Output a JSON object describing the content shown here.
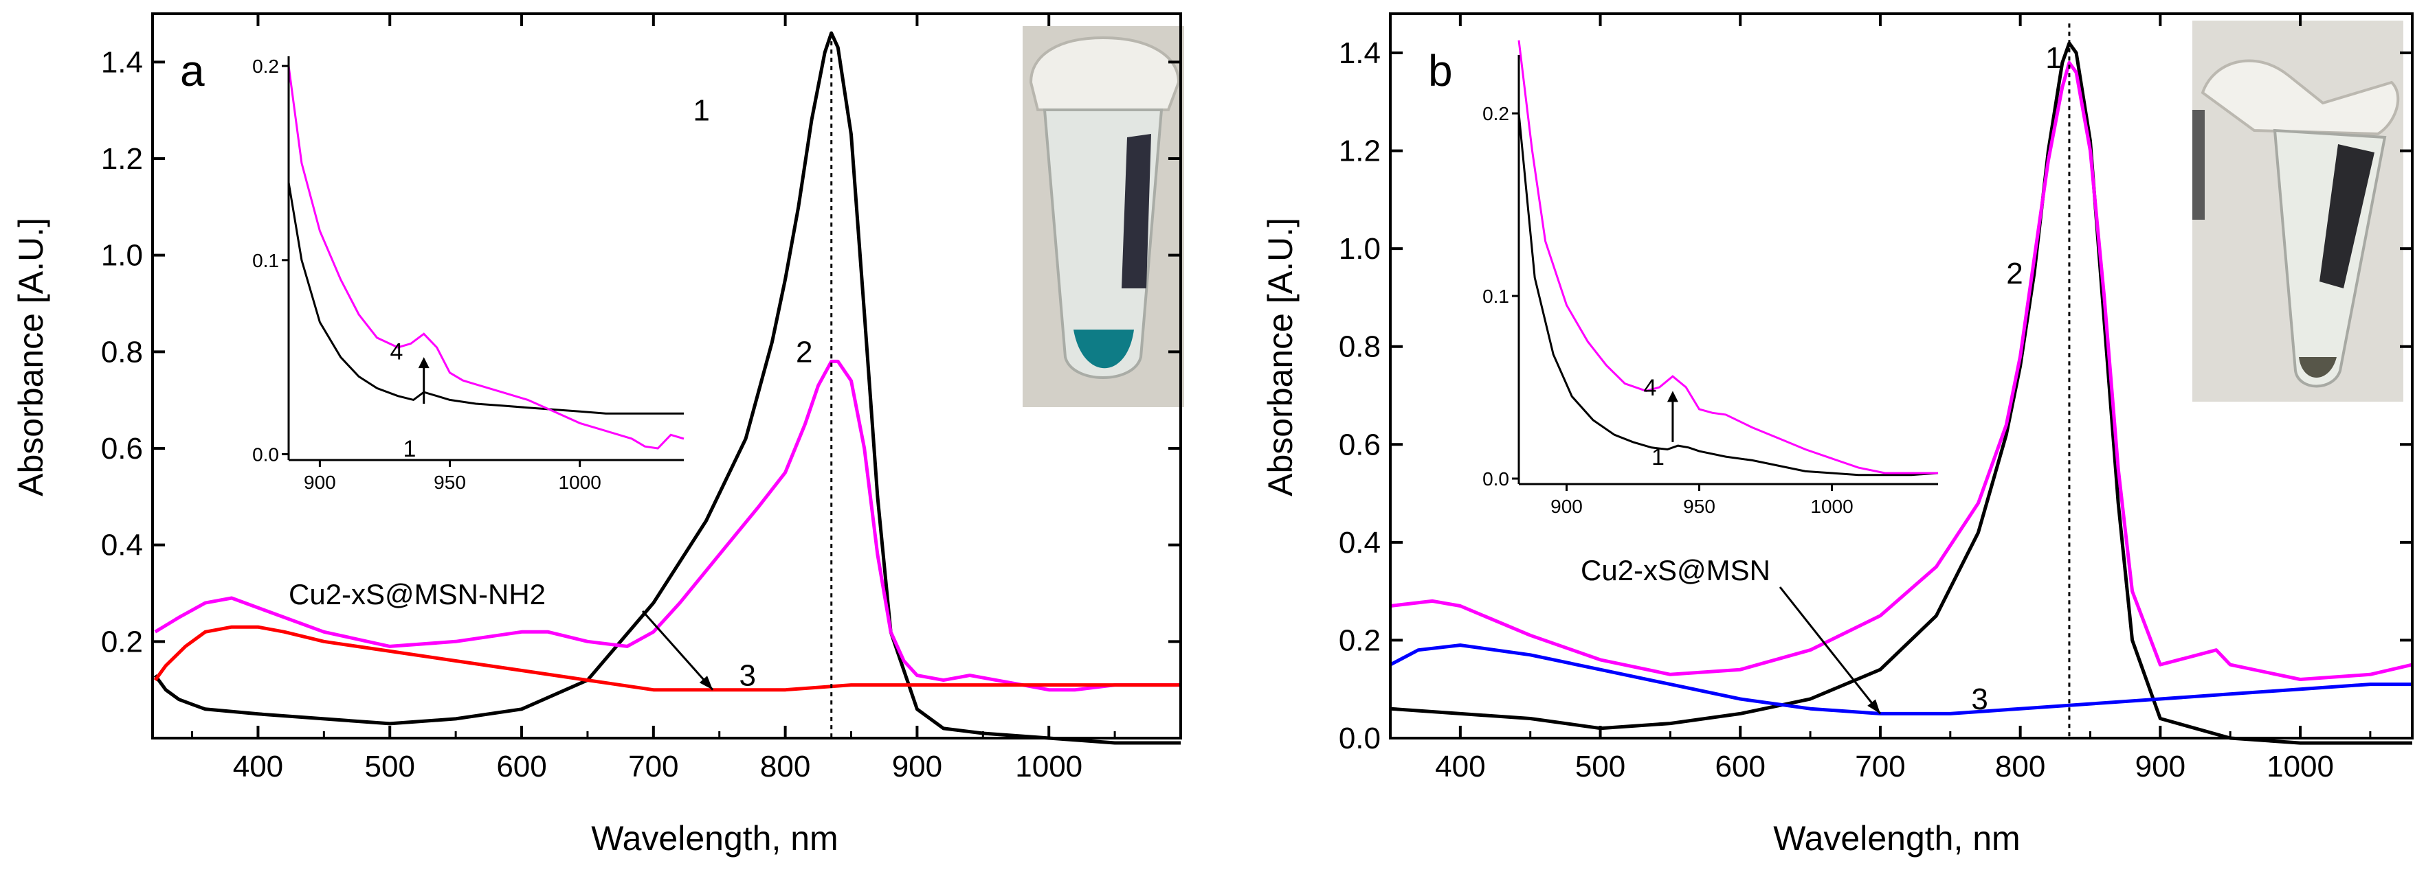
{
  "chart_data": [
    {
      "type": "line",
      "panel_label": "a",
      "xlabel": "Wavelength, nm",
      "ylabel": "Absorbance [A.U.]",
      "xlim": [
        320,
        1100
      ],
      "ylim": [
        0,
        1.5
      ],
      "xticks": [
        400,
        500,
        600,
        700,
        800,
        900,
        1000
      ],
      "yticks": [
        0.2,
        0.4,
        0.6,
        0.8,
        1.0,
        1.2,
        1.4
      ],
      "ytick_labels": [
        "0.2",
        "0.4",
        "0.6",
        "0.8",
        "1.0",
        "1.2",
        "1.4"
      ],
      "peak_marker_x": 835,
      "annotation": {
        "text": "Cu2-xS@MSN-NH2",
        "target": [
          745,
          0.1
        ]
      },
      "series": [
        {
          "name": "1",
          "color": "#000000",
          "x": [
            322,
            330,
            340,
            350,
            360,
            380,
            400,
            450,
            500,
            550,
            600,
            650,
            700,
            740,
            770,
            790,
            800,
            810,
            820,
            830,
            835,
            840,
            850,
            860,
            870,
            880,
            900,
            920,
            950,
            1000,
            1050,
            1100
          ],
          "y": [
            0.13,
            0.1,
            0.08,
            0.07,
            0.06,
            0.055,
            0.05,
            0.04,
            0.03,
            0.04,
            0.06,
            0.12,
            0.28,
            0.45,
            0.62,
            0.82,
            0.95,
            1.1,
            1.28,
            1.42,
            1.46,
            1.43,
            1.25,
            0.88,
            0.5,
            0.22,
            0.06,
            0.02,
            0.01,
            0.0,
            -0.01,
            -0.01
          ],
          "label_pos": [
            730,
            1.3
          ]
        },
        {
          "name": "2",
          "color": "#ff00ff",
          "x": [
            322,
            340,
            360,
            380,
            400,
            450,
            500,
            550,
            600,
            620,
            650,
            680,
            700,
            720,
            750,
            780,
            800,
            815,
            825,
            835,
            840,
            850,
            860,
            870,
            880,
            890,
            900,
            920,
            940,
            960,
            980,
            1000,
            1020,
            1050,
            1100
          ],
          "y": [
            0.22,
            0.25,
            0.28,
            0.29,
            0.27,
            0.22,
            0.19,
            0.2,
            0.22,
            0.22,
            0.2,
            0.19,
            0.22,
            0.28,
            0.38,
            0.48,
            0.55,
            0.65,
            0.73,
            0.78,
            0.78,
            0.74,
            0.6,
            0.38,
            0.22,
            0.16,
            0.13,
            0.12,
            0.13,
            0.12,
            0.11,
            0.1,
            0.1,
            0.11,
            0.11
          ],
          "label_pos": [
            808,
            0.8
          ]
        },
        {
          "name": "3",
          "color": "#ff0000",
          "x": [
            322,
            330,
            345,
            360,
            380,
            400,
            420,
            450,
            500,
            550,
            600,
            650,
            700,
            750,
            800,
            850,
            900,
            950,
            1000,
            1050,
            1100
          ],
          "y": [
            0.12,
            0.15,
            0.19,
            0.22,
            0.23,
            0.23,
            0.22,
            0.2,
            0.18,
            0.16,
            0.14,
            0.12,
            0.1,
            0.1,
            0.1,
            0.11,
            0.11,
            0.11,
            0.11,
            0.11,
            0.11
          ],
          "label_pos": [
            765,
            0.13
          ]
        }
      ],
      "inset": {
        "xlim": [
          888,
          1040
        ],
        "ylim": [
          -0.003,
          0.205
        ],
        "xticks": [
          900,
          950,
          1000
        ],
        "yticks": [
          0.0,
          0.1,
          0.2
        ],
        "ytick_labels": [
          "0.0",
          "0.1",
          "0.2"
        ],
        "arrow": {
          "x": 940,
          "from": 0.026,
          "to": 0.05
        },
        "series": [
          {
            "name": "1",
            "color": "#000000",
            "x": [
              888,
              893,
              900,
              908,
              915,
              922,
              930,
              936,
              940,
              945,
              950,
              960,
              970,
              980,
              990,
              1000,
              1010,
              1020,
              1030,
              1040
            ],
            "y": [
              0.14,
              0.1,
              0.068,
              0.05,
              0.04,
              0.034,
              0.03,
              0.028,
              0.032,
              0.03,
              0.028,
              0.026,
              0.025,
              0.024,
              0.023,
              0.022,
              0.021,
              0.021,
              0.021,
              0.021
            ],
            "label_pos": [
              932,
              0.003
            ]
          },
          {
            "name": "4",
            "color": "#ff00ff",
            "x": [
              888,
              893,
              900,
              908,
              915,
              922,
              930,
              935,
              940,
              945,
              950,
              955,
              960,
              970,
              980,
              990,
              1000,
              1010,
              1020,
              1025,
              1030,
              1035,
              1040
            ],
            "y": [
              0.2,
              0.15,
              0.115,
              0.09,
              0.072,
              0.06,
              0.055,
              0.057,
              0.062,
              0.055,
              0.042,
              0.038,
              0.036,
              0.032,
              0.028,
              0.022,
              0.016,
              0.012,
              0.008,
              0.004,
              0.003,
              0.01,
              0.008
            ],
            "label_pos": [
              927,
              0.053
            ]
          }
        ]
      }
    },
    {
      "type": "line",
      "panel_label": "b",
      "xlabel": "Wavelength, nm",
      "ylabel": "Absorbance [A.U.]",
      "xlim": [
        350,
        1080
      ],
      "ylim": [
        0,
        1.48
      ],
      "xticks": [
        400,
        500,
        600,
        700,
        800,
        900,
        1000
      ],
      "yticks": [
        0.0,
        0.2,
        0.4,
        0.6,
        0.8,
        1.0,
        1.2,
        1.4
      ],
      "ytick_labels": [
        "0.0",
        "0.2",
        "0.4",
        "0.6",
        "0.8",
        "1.0",
        "1.2",
        "1.4"
      ],
      "peak_marker_x": 835,
      "annotation": {
        "text": "Cu2-xS@MSN",
        "target": [
          700,
          0.05
        ]
      },
      "series": [
        {
          "name": "1",
          "color": "#000000",
          "x": [
            350,
            400,
            450,
            500,
            550,
            600,
            650,
            700,
            740,
            770,
            790,
            800,
            810,
            820,
            830,
            835,
            840,
            850,
            860,
            870,
            880,
            900,
            950,
            1000,
            1050,
            1080
          ],
          "y": [
            0.06,
            0.05,
            0.04,
            0.02,
            0.03,
            0.05,
            0.08,
            0.14,
            0.25,
            0.42,
            0.62,
            0.76,
            0.95,
            1.2,
            1.38,
            1.42,
            1.4,
            1.22,
            0.85,
            0.48,
            0.2,
            0.04,
            0.0,
            -0.01,
            -0.01,
            -0.01
          ],
          "label_pos": [
            818,
            1.39
          ]
        },
        {
          "name": "2",
          "color": "#ff00ff",
          "x": [
            350,
            380,
            400,
            450,
            500,
            550,
            600,
            650,
            700,
            740,
            770,
            790,
            800,
            810,
            820,
            830,
            835,
            840,
            850,
            860,
            870,
            880,
            900,
            940,
            950,
            1000,
            1050,
            1080
          ],
          "y": [
            0.27,
            0.28,
            0.27,
            0.21,
            0.16,
            0.13,
            0.14,
            0.18,
            0.25,
            0.35,
            0.48,
            0.64,
            0.78,
            0.98,
            1.18,
            1.33,
            1.38,
            1.36,
            1.2,
            0.9,
            0.55,
            0.3,
            0.15,
            0.18,
            0.15,
            0.12,
            0.13,
            0.15
          ],
          "label_pos": [
            790,
            0.95
          ]
        },
        {
          "name": "3",
          "color": "#0000ff",
          "x": [
            350,
            370,
            400,
            450,
            500,
            550,
            600,
            650,
            700,
            750,
            800,
            850,
            900,
            950,
            1000,
            1050,
            1080
          ],
          "y": [
            0.15,
            0.18,
            0.19,
            0.17,
            0.14,
            0.11,
            0.08,
            0.06,
            0.05,
            0.05,
            0.06,
            0.07,
            0.08,
            0.09,
            0.1,
            0.11,
            0.11
          ],
          "label_pos": [
            765,
            0.08
          ]
        }
      ],
      "inset": {
        "xlim": [
          882,
          1040
        ],
        "ylim": [
          -0.003,
          0.232
        ],
        "xticks": [
          900,
          950,
          1000
        ],
        "yticks": [
          0.0,
          0.1,
          0.2
        ],
        "ytick_labels": [
          "0.0",
          "0.1",
          "0.2"
        ],
        "arrow": {
          "x": 940,
          "from": 0.02,
          "to": 0.048
        },
        "series": [
          {
            "name": "1",
            "color": "#000000",
            "x": [
              882,
              888,
              895,
              902,
              910,
              918,
              925,
              932,
              938,
              942,
              946,
              950,
              960,
              970,
              980,
              990,
              1000,
              1010,
              1020,
              1030,
              1040
            ],
            "y": [
              0.2,
              0.11,
              0.068,
              0.045,
              0.032,
              0.024,
              0.02,
              0.017,
              0.016,
              0.018,
              0.017,
              0.015,
              0.012,
              0.01,
              0.007,
              0.004,
              0.003,
              0.002,
              0.002,
              0.002,
              0.003
            ],
            "label_pos": [
              932,
              0.012
            ]
          },
          {
            "name": "4",
            "color": "#ff00ff",
            "x": [
              882,
              887,
              892,
              900,
              908,
              915,
              922,
              930,
              935,
              940,
              945,
              950,
              955,
              960,
              970,
              980,
              990,
              1000,
              1010,
              1020,
              1030,
              1040
            ],
            "y": [
              0.24,
              0.18,
              0.13,
              0.095,
              0.075,
              0.062,
              0.052,
              0.048,
              0.05,
              0.056,
              0.05,
              0.038,
              0.036,
              0.035,
              0.028,
              0.022,
              0.016,
              0.011,
              0.006,
              0.003,
              0.003,
              0.003
            ],
            "label_pos": [
              929,
              0.05
            ]
          }
        ]
      }
    }
  ]
}
